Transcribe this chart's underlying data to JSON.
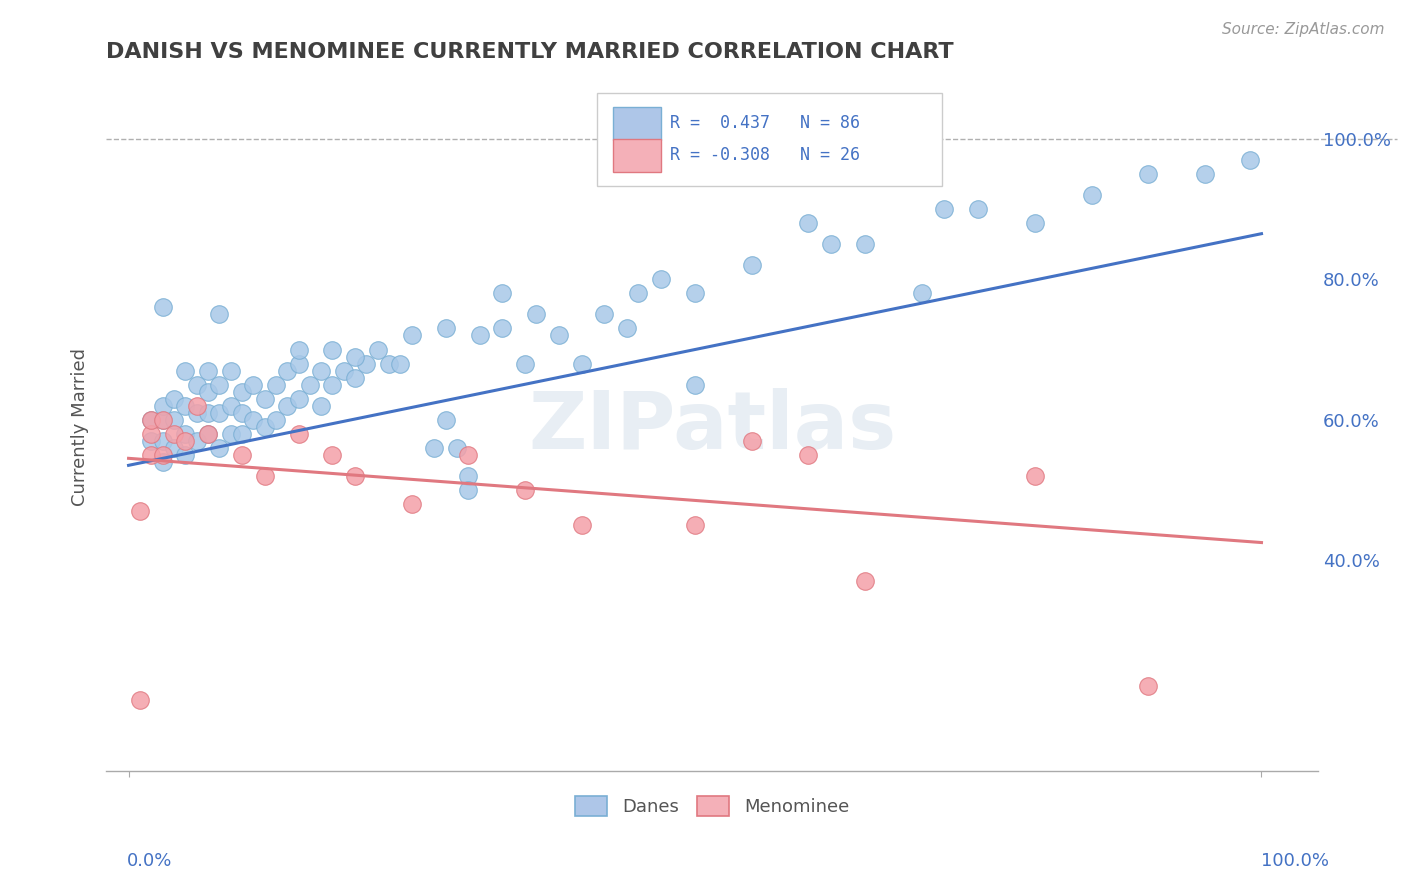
{
  "title": "DANISH VS MENOMINEE CURRENTLY MARRIED CORRELATION CHART",
  "source": "Source: ZipAtlas.com",
  "ylabel": "Currently Married",
  "legend_blue_label": "Danes",
  "legend_pink_label": "Menominee",
  "r_blue": 0.437,
  "n_blue": 86,
  "r_pink": -0.308,
  "n_pink": 26,
  "blue_dot_color": "#a8c8e8",
  "blue_dot_edge": "#7aafd4",
  "blue_line_color": "#4472c4",
  "pink_dot_color": "#f4a0a8",
  "pink_dot_edge": "#e07880",
  "pink_line_color": "#e07880",
  "dashed_line_color": "#b0b0b0",
  "watermark_color": "#e8eef4",
  "y_ticks": [
    0.4,
    0.6,
    0.8,
    1.0
  ],
  "y_tick_labels": [
    "40.0%",
    "60.0%",
    "80.0%",
    "100.0%"
  ],
  "ylim_min": 0.1,
  "ylim_max": 1.08,
  "xlim_min": -0.02,
  "xlim_max": 1.05,
  "blue_trend_x0": 0.0,
  "blue_trend_y0": 0.535,
  "blue_trend_x1": 1.0,
  "blue_trend_y1": 0.865,
  "pink_trend_x0": 0.0,
  "pink_trend_y0": 0.545,
  "pink_trend_x1": 1.0,
  "pink_trend_y1": 0.425,
  "blue_dots_x": [
    0.02,
    0.02,
    0.03,
    0.03,
    0.03,
    0.03,
    0.04,
    0.04,
    0.04,
    0.05,
    0.05,
    0.05,
    0.05,
    0.06,
    0.06,
    0.06,
    0.07,
    0.07,
    0.07,
    0.07,
    0.08,
    0.08,
    0.08,
    0.09,
    0.09,
    0.09,
    0.1,
    0.1,
    0.1,
    0.11,
    0.11,
    0.12,
    0.12,
    0.13,
    0.13,
    0.14,
    0.14,
    0.15,
    0.15,
    0.16,
    0.17,
    0.17,
    0.18,
    0.18,
    0.19,
    0.2,
    0.21,
    0.22,
    0.23,
    0.24,
    0.25,
    0.27,
    0.28,
    0.29,
    0.3,
    0.31,
    0.33,
    0.35,
    0.36,
    0.38,
    0.4,
    0.42,
    0.45,
    0.47,
    0.5,
    0.5,
    0.55,
    0.6,
    0.65,
    0.7,
    0.75,
    0.8,
    0.85,
    0.9,
    0.95,
    0.99,
    0.62,
    0.72,
    0.3,
    0.33,
    0.03,
    0.28,
    0.44,
    0.15,
    0.2,
    0.08
  ],
  "blue_dots_y": [
    0.57,
    0.6,
    0.54,
    0.57,
    0.6,
    0.62,
    0.56,
    0.6,
    0.63,
    0.55,
    0.58,
    0.62,
    0.67,
    0.57,
    0.61,
    0.65,
    0.58,
    0.61,
    0.64,
    0.67,
    0.56,
    0.61,
    0.65,
    0.58,
    0.62,
    0.67,
    0.58,
    0.61,
    0.64,
    0.6,
    0.65,
    0.59,
    0.63,
    0.6,
    0.65,
    0.62,
    0.67,
    0.63,
    0.68,
    0.65,
    0.62,
    0.67,
    0.65,
    0.7,
    0.67,
    0.66,
    0.68,
    0.7,
    0.68,
    0.68,
    0.72,
    0.56,
    0.6,
    0.56,
    0.52,
    0.72,
    0.73,
    0.68,
    0.75,
    0.72,
    0.68,
    0.75,
    0.78,
    0.8,
    0.78,
    0.65,
    0.82,
    0.88,
    0.85,
    0.78,
    0.9,
    0.88,
    0.92,
    0.95,
    0.95,
    0.97,
    0.85,
    0.9,
    0.5,
    0.78,
    0.76,
    0.73,
    0.73,
    0.7,
    0.69,
    0.75
  ],
  "pink_dots_x": [
    0.01,
    0.01,
    0.02,
    0.02,
    0.02,
    0.03,
    0.03,
    0.04,
    0.05,
    0.06,
    0.07,
    0.1,
    0.12,
    0.15,
    0.18,
    0.2,
    0.25,
    0.3,
    0.35,
    0.4,
    0.5,
    0.55,
    0.6,
    0.65,
    0.8,
    0.9
  ],
  "pink_dots_y": [
    0.2,
    0.47,
    0.55,
    0.58,
    0.6,
    0.55,
    0.6,
    0.58,
    0.57,
    0.62,
    0.58,
    0.55,
    0.52,
    0.58,
    0.55,
    0.52,
    0.48,
    0.55,
    0.5,
    0.45,
    0.45,
    0.57,
    0.55,
    0.37,
    0.52,
    0.22
  ]
}
